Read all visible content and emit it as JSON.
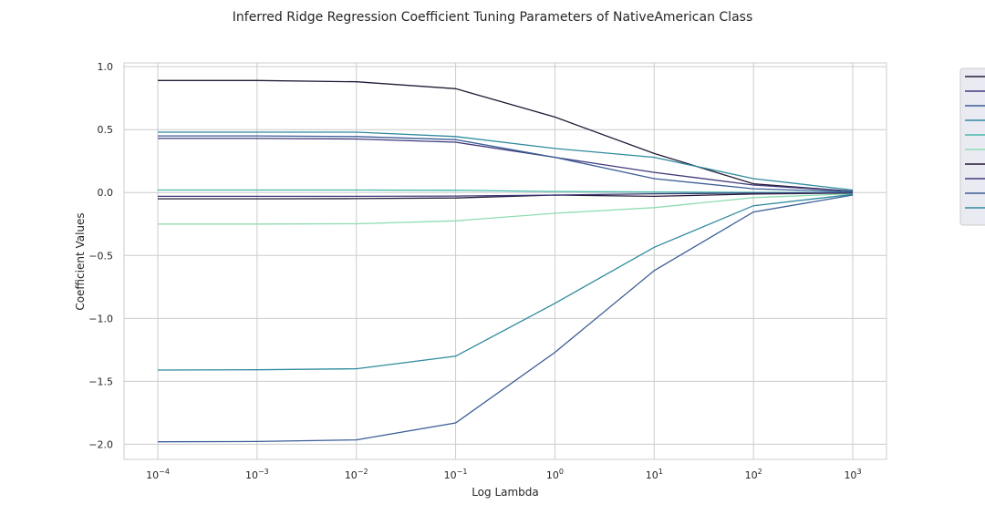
{
  "chart_data": {
    "type": "line",
    "title": "Inferred Ridge Regression Coefficient Tuning Parameters of NativeAmerican Class",
    "xlabel": "Log Lambda",
    "ylabel": "Coefficient Values",
    "x_scale": "log",
    "x": [
      0.0001,
      0.001,
      0.01,
      0.1,
      1,
      10,
      100,
      1000
    ],
    "x_ticks": [
      {
        "base": "10",
        "exp": "−4"
      },
      {
        "base": "10",
        "exp": "−3"
      },
      {
        "base": "10",
        "exp": "−2"
      },
      {
        "base": "10",
        "exp": "−1"
      },
      {
        "base": "10",
        "exp": "0"
      },
      {
        "base": "10",
        "exp": "1"
      },
      {
        "base": "10",
        "exp": "2"
      },
      {
        "base": "10",
        "exp": "3"
      }
    ],
    "y_ticks": [
      "−2.0",
      "−1.5",
      "−1.0",
      "−0.5",
      "0.0",
      "0.5",
      "1.0"
    ],
    "ylim": [
      -2.12,
      1.03
    ],
    "xlim_log10": [
      -4.34,
      3.34
    ],
    "grid": true,
    "legend_position": "top-right",
    "series": [
      {
        "color": "#241b36",
        "values": [
          0.89,
          0.89,
          0.88,
          0.825,
          0.6,
          0.31,
          0.07,
          0.01
        ]
      },
      {
        "color": "#3f3a7a",
        "values": [
          0.43,
          0.43,
          0.425,
          0.4,
          0.28,
          0.16,
          0.06,
          0.01
        ]
      },
      {
        "color": "#3b5e96",
        "values": [
          0.45,
          0.45,
          0.445,
          0.42,
          0.28,
          0.11,
          0.03,
          0.005
        ]
      },
      {
        "color": "#2f8a9e",
        "values": [
          0.48,
          0.48,
          0.48,
          0.445,
          0.35,
          0.28,
          0.11,
          0.02
        ]
      },
      {
        "color": "#45b9a9",
        "values": [
          0.02,
          0.02,
          0.02,
          0.018,
          0.008,
          0.004,
          0.002,
          0.0
        ]
      },
      {
        "color": "#8fdcb2",
        "values": [
          -0.25,
          -0.25,
          -0.248,
          -0.225,
          -0.165,
          -0.12,
          -0.04,
          -0.01
        ]
      },
      {
        "color": "#241b36",
        "values": [
          -0.05,
          -0.05,
          -0.048,
          -0.043,
          -0.02,
          -0.03,
          -0.012,
          -0.003
        ]
      },
      {
        "color": "#3f3a7a",
        "values": [
          -0.03,
          -0.03,
          -0.03,
          -0.028,
          -0.02,
          -0.01,
          -0.005,
          -0.001
        ]
      },
      {
        "color": "#3b5e96",
        "values": [
          -1.98,
          -1.978,
          -1.965,
          -1.83,
          -1.27,
          -0.62,
          -0.155,
          -0.02
        ]
      },
      {
        "color": "#2f8a9e",
        "values": [
          -1.41,
          -1.408,
          -1.4,
          -1.3,
          -0.88,
          -0.435,
          -0.105,
          -0.015
        ]
      }
    ]
  }
}
